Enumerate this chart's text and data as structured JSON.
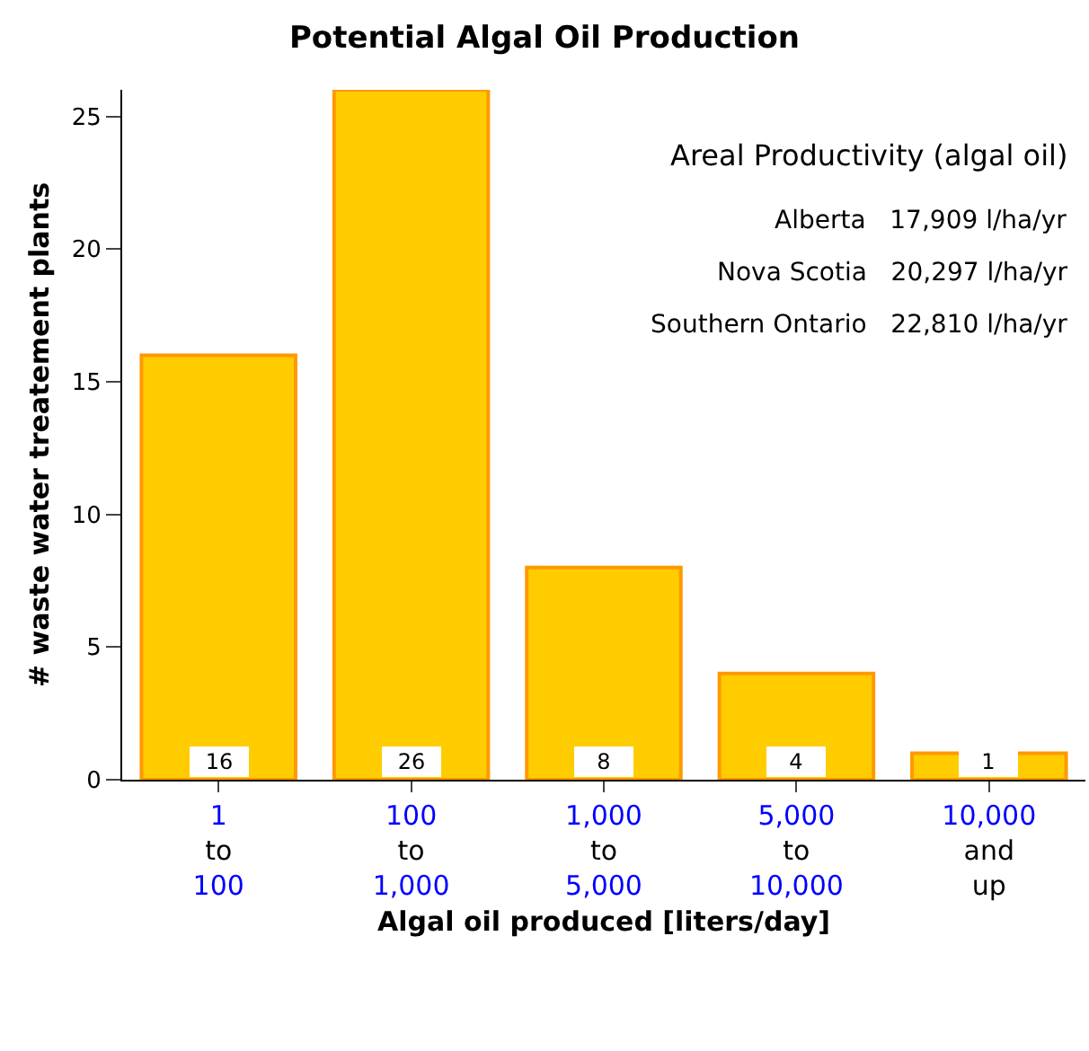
{
  "chart_data": {
    "type": "bar",
    "title": "Potential Algal Oil Production",
    "xlabel": "Algal oil produced [liters/day]",
    "ylabel": "# waste water treatement plants",
    "categories": [
      "1\nto\n100",
      "100\nto\n1,000",
      "1,000\nto\n5,000",
      "5,000\nto\n10,000",
      "10,000\nand\nup"
    ],
    "values": [
      16,
      26,
      8,
      4,
      1
    ],
    "color": "#ffcc00",
    "ylim": [
      0,
      26
    ],
    "yticks": [
      0,
      5,
      10,
      15,
      20,
      25
    ],
    "data_labels": true,
    "annotations": [
      "Areal Productivity (algal oil)",
      "Alberta   17,909 l/ha/yr",
      "Nova Scotia   20,297 l/ha/yr",
      "Southern Ontario   22,810 l/ha/yr"
    ]
  }
}
